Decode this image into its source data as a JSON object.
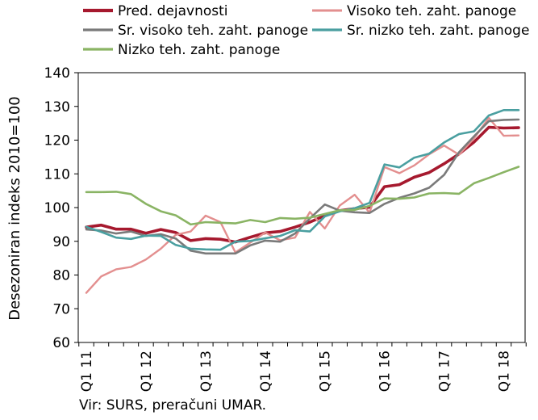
{
  "chart_data": {
    "type": "line",
    "ylabel": "Desezoniran indeks 2010=100",
    "xlabel": "",
    "ylim": [
      60,
      140
    ],
    "yticks": [
      60,
      70,
      80,
      90,
      100,
      110,
      120,
      130,
      140
    ],
    "x_tick_labels": [
      "Q1 11",
      "Q1 12",
      "Q1 13",
      "Q1 14",
      "Q1 15",
      "Q1 16",
      "Q1 17",
      "Q1 18"
    ],
    "grid": false,
    "legend": "top",
    "x": [
      "Q1 11",
      "Q2 11",
      "Q3 11",
      "Q4 11",
      "Q1 12",
      "Q2 12",
      "Q3 12",
      "Q4 12",
      "Q1 13",
      "Q2 13",
      "Q3 13",
      "Q4 13",
      "Q1 14",
      "Q2 14",
      "Q3 14",
      "Q4 14",
      "Q1 15",
      "Q2 15",
      "Q3 15",
      "Q4 15",
      "Q1 16",
      "Q2 16",
      "Q3 16",
      "Q4 16",
      "Q1 17",
      "Q2 17",
      "Q3 17",
      "Q4 17",
      "Q1 18",
      "Q2 18"
    ],
    "series": [
      {
        "name": "Pred. dejavnosti",
        "color": "#a6192e",
        "width": 3.6,
        "values": [
          94.2,
          94.8,
          93.6,
          93.6,
          92.4,
          93.5,
          92.6,
          90.2,
          90.8,
          90.6,
          89.8,
          91.2,
          92.5,
          92.9,
          94.2,
          95.7,
          97.6,
          99.1,
          99.7,
          100.1,
          106.2,
          106.8,
          109.0,
          110.4,
          113.0,
          115.9,
          119.4,
          123.8,
          123.6,
          123.7
        ]
      },
      {
        "name": "Visoko teh. zaht. panoge",
        "color": "#e38f8f",
        "width": 2.4,
        "values": [
          74.7,
          79.6,
          81.7,
          82.4,
          84.6,
          87.8,
          91.9,
          92.9,
          97.6,
          95.7,
          86.7,
          89.6,
          92.6,
          90.3,
          91.1,
          98.7,
          93.8,
          100.6,
          103.8,
          98.5,
          112.0,
          110.2,
          112.5,
          115.8,
          118.4,
          115.7,
          120.5,
          126.6,
          121.3,
          121.4
        ]
      },
      {
        "name": "Sr. visoko teh. zaht. panoge",
        "color": "#7a7a7a",
        "width": 2.6,
        "values": [
          93.5,
          93.2,
          92.3,
          92.9,
          91.6,
          92.1,
          90.8,
          87.2,
          86.4,
          86.4,
          86.4,
          88.8,
          90.2,
          89.9,
          92.3,
          96.8,
          100.9,
          99.1,
          98.6,
          98.4,
          101.1,
          102.9,
          104.2,
          105.9,
          109.7,
          116.4,
          121.1,
          125.6,
          126.0,
          126.1
        ]
      },
      {
        "name": "Sr. nizko teh. zaht. panoge",
        "color": "#4a9fa0",
        "width": 2.6,
        "values": [
          94.3,
          92.8,
          91.1,
          90.7,
          91.7,
          91.6,
          88.9,
          87.8,
          87.6,
          87.5,
          89.9,
          90.1,
          90.9,
          91.6,
          93.3,
          92.9,
          97.4,
          98.9,
          99.8,
          101.4,
          112.8,
          111.9,
          114.8,
          116.0,
          119.3,
          121.8,
          122.6,
          127.3,
          128.9,
          128.9
        ]
      },
      {
        "name": "Nizko teh. zaht. panoge",
        "color": "#8ab464",
        "width": 2.6,
        "values": [
          104.6,
          104.6,
          104.7,
          104.0,
          101.1,
          98.9,
          97.7,
          95.0,
          95.7,
          95.5,
          95.3,
          96.3,
          95.7,
          96.9,
          96.7,
          97.0,
          98.1,
          99.2,
          99.3,
          100.5,
          102.7,
          102.6,
          103.0,
          104.2,
          104.3,
          104.1,
          107.2,
          108.8,
          110.5,
          112.1
        ]
      }
    ]
  },
  "source_text": "Vir: SURS, preračuni UMAR."
}
